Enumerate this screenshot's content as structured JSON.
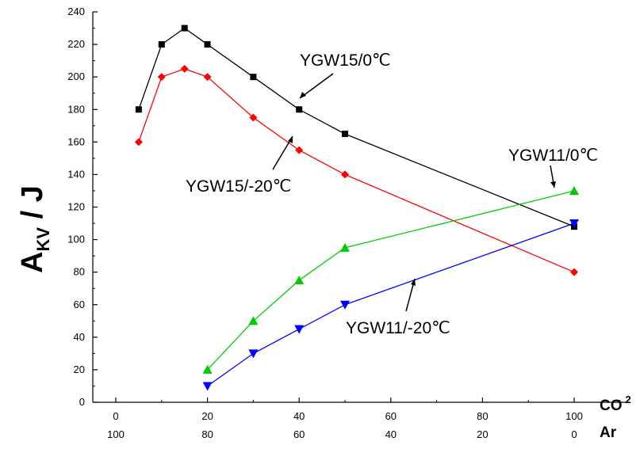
{
  "chart_data": {
    "type": "line",
    "ylabel": {
      "main": "A",
      "sub": "KV",
      "rest": " / J"
    },
    "x_axis_label_top": {
      "main": "CO",
      "sub": "2"
    },
    "x_axis_label_bottom": "Ar",
    "ylim": [
      0,
      240
    ],
    "xlim": [
      -5,
      102
    ],
    "yticks": [
      "0",
      "20",
      "40",
      "60",
      "80",
      "100",
      "120",
      "140",
      "160",
      "180",
      "200",
      "220",
      "240"
    ],
    "x_ticks_top": [
      "0",
      "20",
      "40",
      "60",
      "80",
      "100"
    ],
    "x_ticks_bottom": [
      "100",
      "80",
      "60",
      "40",
      "20",
      "0"
    ],
    "grid": false,
    "series": [
      {
        "name": "YGW15/0℃",
        "color": "#000000",
        "marker": "square",
        "x": [
          5,
          10,
          15,
          20,
          30,
          40,
          50,
          100
        ],
        "y": [
          180,
          220,
          230,
          220,
          200,
          180,
          165,
          108
        ]
      },
      {
        "name": "YGW15/-20℃",
        "color": "#ff0000",
        "marker": "diamond",
        "x": [
          5,
          10,
          15,
          20,
          30,
          40,
          50,
          100
        ],
        "y": [
          160,
          200,
          205,
          200,
          175,
          155,
          140,
          80
        ]
      },
      {
        "name": "YGW11/0℃",
        "color": "#00cc00",
        "marker": "triangle-up",
        "x": [
          20,
          30,
          40,
          50,
          100
        ],
        "y": [
          20,
          50,
          75,
          95,
          130
        ]
      },
      {
        "name": "YGW11/-20℃",
        "color": "#0000ff",
        "marker": "triangle-down",
        "x": [
          20,
          30,
          40,
          50,
          100
        ],
        "y": [
          10,
          30,
          45,
          60,
          110
        ]
      }
    ]
  }
}
